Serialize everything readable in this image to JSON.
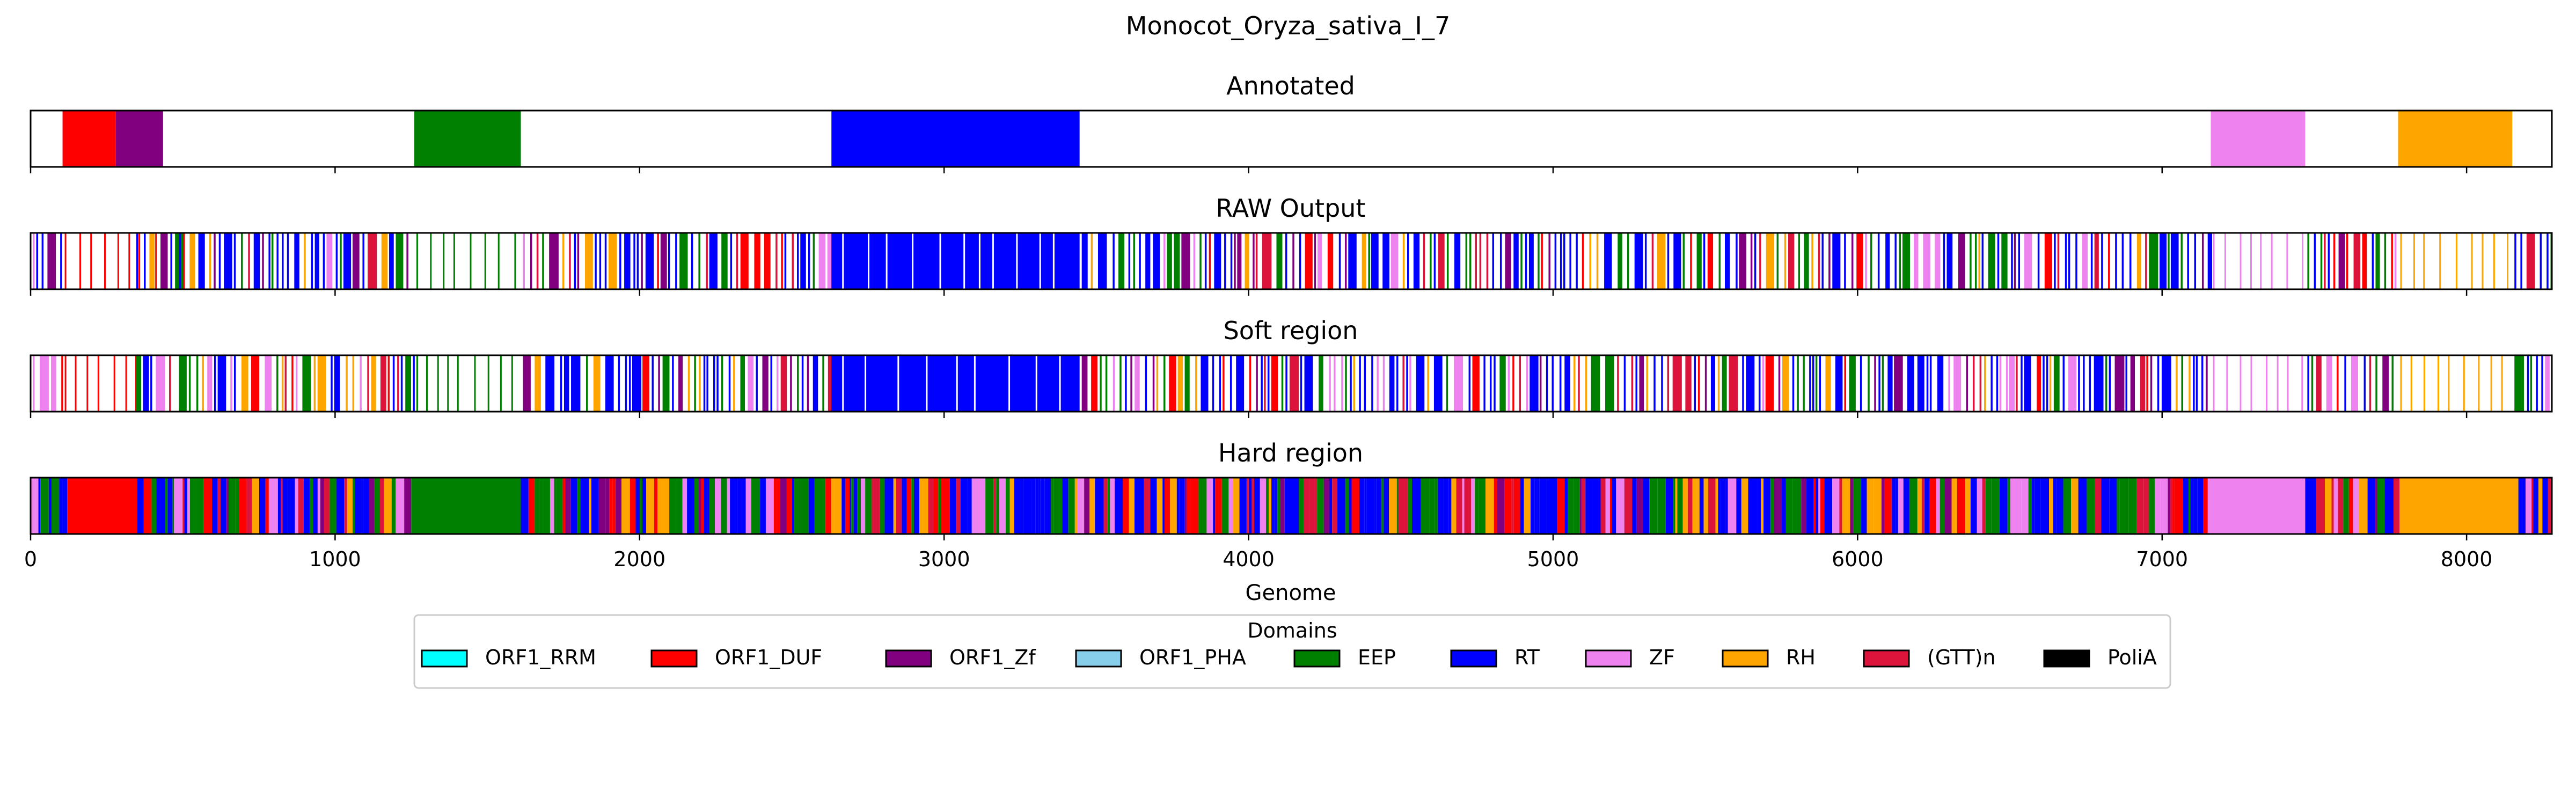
{
  "chart_data": {
    "type": "bar",
    "title": "Monocot_Oryza_sativa_I_7",
    "xlabel": "Genome",
    "xlim": [
      0,
      8280
    ],
    "x_ticks": [
      0,
      1000,
      2000,
      3000,
      4000,
      5000,
      6000,
      7000,
      8000
    ],
    "x_tick_labels": [
      "0",
      "1000",
      "2000",
      "3000",
      "4000",
      "5000",
      "6000",
      "7000",
      "8000"
    ],
    "colors": {
      "ORF1_RRM": "#00ffff",
      "ORF1_DUF": "#ff0000",
      "ORF1_Zf": "#800080",
      "ORF1_PHA": "#87ceeb",
      "EEP": "#008000",
      "RT": "#0000ff",
      "ZF": "#ee82ee",
      "RH": "#ffa500",
      "(GTT)n": "#dc143c",
      "PoliA": "#000000"
    },
    "legend": {
      "title": "Domains",
      "placement": "bottom-center",
      "entries": [
        "ORF1_RRM",
        "ORF1_DUF",
        "ORF1_Zf",
        "ORF1_PHA",
        "EEP",
        "RT",
        "ZF",
        "RH",
        "(GTT)n",
        "PoliA"
      ]
    },
    "tracks": [
      {
        "title": "Annotated",
        "segments": [
          {
            "domain": "ORF1_DUF",
            "start": 105,
            "end": 280
          },
          {
            "domain": "ORF1_Zf",
            "start": 280,
            "end": 435
          },
          {
            "domain": "EEP",
            "start": 1260,
            "end": 1610
          },
          {
            "domain": "RT",
            "start": 2630,
            "end": 3445
          },
          {
            "domain": "ZF",
            "start": 7160,
            "end": 7470
          },
          {
            "domain": "RH",
            "start": 7775,
            "end": 8150
          }
        ]
      },
      {
        "title": "RAW Output",
        "style": "sparse",
        "segments": [
          {
            "domain": "RT",
            "start": 0,
            "end": 105
          },
          {
            "domain": "ORF1_DUF",
            "start": 105,
            "end": 435
          },
          {
            "domain": "ORF1_Zf",
            "start": 340,
            "end": 480
          },
          {
            "domain": "RT",
            "start": 480,
            "end": 1260
          },
          {
            "domain": "EEP",
            "start": 1260,
            "end": 1610
          },
          {
            "domain": "RT",
            "start": 1610,
            "end": 2630
          },
          {
            "domain": "RT",
            "start": 2630,
            "end": 3445
          },
          {
            "domain": "RT",
            "start": 3445,
            "end": 7160
          },
          {
            "domain": "ZF",
            "start": 7160,
            "end": 7470
          },
          {
            "domain": "RT",
            "start": 7470,
            "end": 7775
          },
          {
            "domain": "RH",
            "start": 7775,
            "end": 8150
          },
          {
            "domain": "RT",
            "start": 8150,
            "end": 8280
          }
        ]
      },
      {
        "title": "Soft region",
        "style": "sparse",
        "segments": [
          {
            "domain": "RT",
            "start": 0,
            "end": 105
          },
          {
            "domain": "ORF1_DUF",
            "start": 105,
            "end": 435
          },
          {
            "domain": "ORF1_Zf",
            "start": 340,
            "end": 480
          },
          {
            "domain": "RT",
            "start": 480,
            "end": 1260
          },
          {
            "domain": "EEP",
            "start": 1260,
            "end": 1610
          },
          {
            "domain": "RT",
            "start": 1610,
            "end": 2630
          },
          {
            "domain": "RT",
            "start": 2630,
            "end": 3445
          },
          {
            "domain": "RT",
            "start": 3445,
            "end": 7160
          },
          {
            "domain": "ZF",
            "start": 7160,
            "end": 7470
          },
          {
            "domain": "RT",
            "start": 7470,
            "end": 7775
          },
          {
            "domain": "RH",
            "start": 7775,
            "end": 8150
          },
          {
            "domain": "RT",
            "start": 8150,
            "end": 8280
          }
        ]
      },
      {
        "title": "Hard region",
        "style": "dense",
        "segments": [
          {
            "domain": "RT",
            "start": 0,
            "end": 120
          },
          {
            "domain": "ORF1_DUF",
            "start": 120,
            "end": 350
          },
          {
            "domain": "ORF1_Zf",
            "start": 350,
            "end": 450
          },
          {
            "domain": "RT",
            "start": 450,
            "end": 1250
          },
          {
            "domain": "EEP",
            "start": 1250,
            "end": 1610
          },
          {
            "domain": "RT",
            "start": 1610,
            "end": 2640
          },
          {
            "domain": "RT",
            "start": 2640,
            "end": 3460
          },
          {
            "domain": "RT",
            "start": 3460,
            "end": 7150
          },
          {
            "domain": "ZF",
            "start": 7150,
            "end": 7470
          },
          {
            "domain": "RT",
            "start": 7470,
            "end": 7780
          },
          {
            "domain": "RH",
            "start": 7780,
            "end": 8170
          },
          {
            "domain": "RT",
            "start": 8170,
            "end": 8280
          }
        ]
      }
    ]
  }
}
